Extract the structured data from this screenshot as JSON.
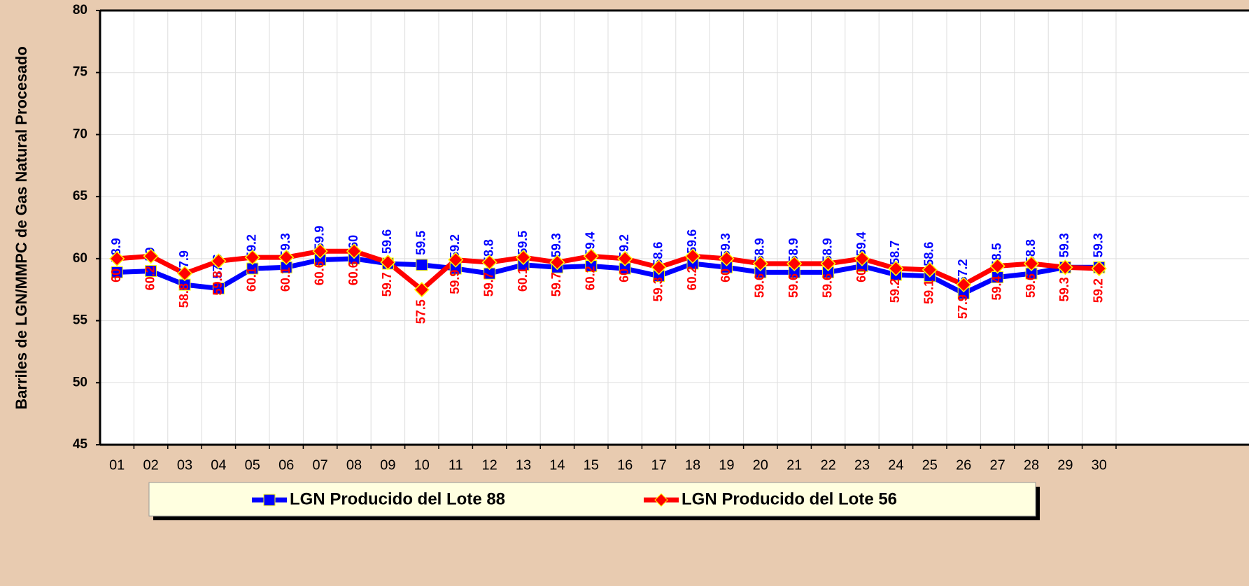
{
  "chart_data": {
    "type": "line",
    "y_axis_label": "Barriles de LGN/MMPC de Gas Natural Procesado",
    "categories": [
      "01",
      "02",
      "03",
      "04",
      "05",
      "06",
      "07",
      "08",
      "09",
      "10",
      "11",
      "12",
      "13",
      "14",
      "15",
      "16",
      "17",
      "18",
      "19",
      "20",
      "21",
      "22",
      "23",
      "24",
      "25",
      "26",
      "27",
      "28",
      "29",
      "30"
    ],
    "series": [
      {
        "name": "LGN Producido del Lote 88",
        "color": "#0000ff",
        "marker": "square",
        "values": [
          58.9,
          59.0,
          57.9,
          57.6,
          59.2,
          59.3,
          59.9,
          60.0,
          59.6,
          59.5,
          59.2,
          58.8,
          59.5,
          59.3,
          59.4,
          59.2,
          58.6,
          59.6,
          59.3,
          58.9,
          58.9,
          58.9,
          59.4,
          58.7,
          58.6,
          57.2,
          58.5,
          58.8,
          59.3,
          59.3
        ]
      },
      {
        "name": "LGN Producido del Lote 56",
        "color": "#ff0000",
        "marker": "diamond",
        "values": [
          60.0,
          60.2,
          58.8,
          59.8,
          60.1,
          60.1,
          60.6,
          60.6,
          59.7,
          57.5,
          59.9,
          59.7,
          60.1,
          59.7,
          60.2,
          60.0,
          59.3,
          60.2,
          60.0,
          59.6,
          59.6,
          59.6,
          60.0,
          59.2,
          59.1,
          57.9,
          59.4,
          59.6,
          59.3,
          59.2
        ]
      }
    ],
    "ylim": [
      45,
      80
    ],
    "yticks": [
      45,
      50,
      55,
      60,
      65,
      70,
      75,
      80
    ],
    "grid": true,
    "legend": "bottom"
  }
}
